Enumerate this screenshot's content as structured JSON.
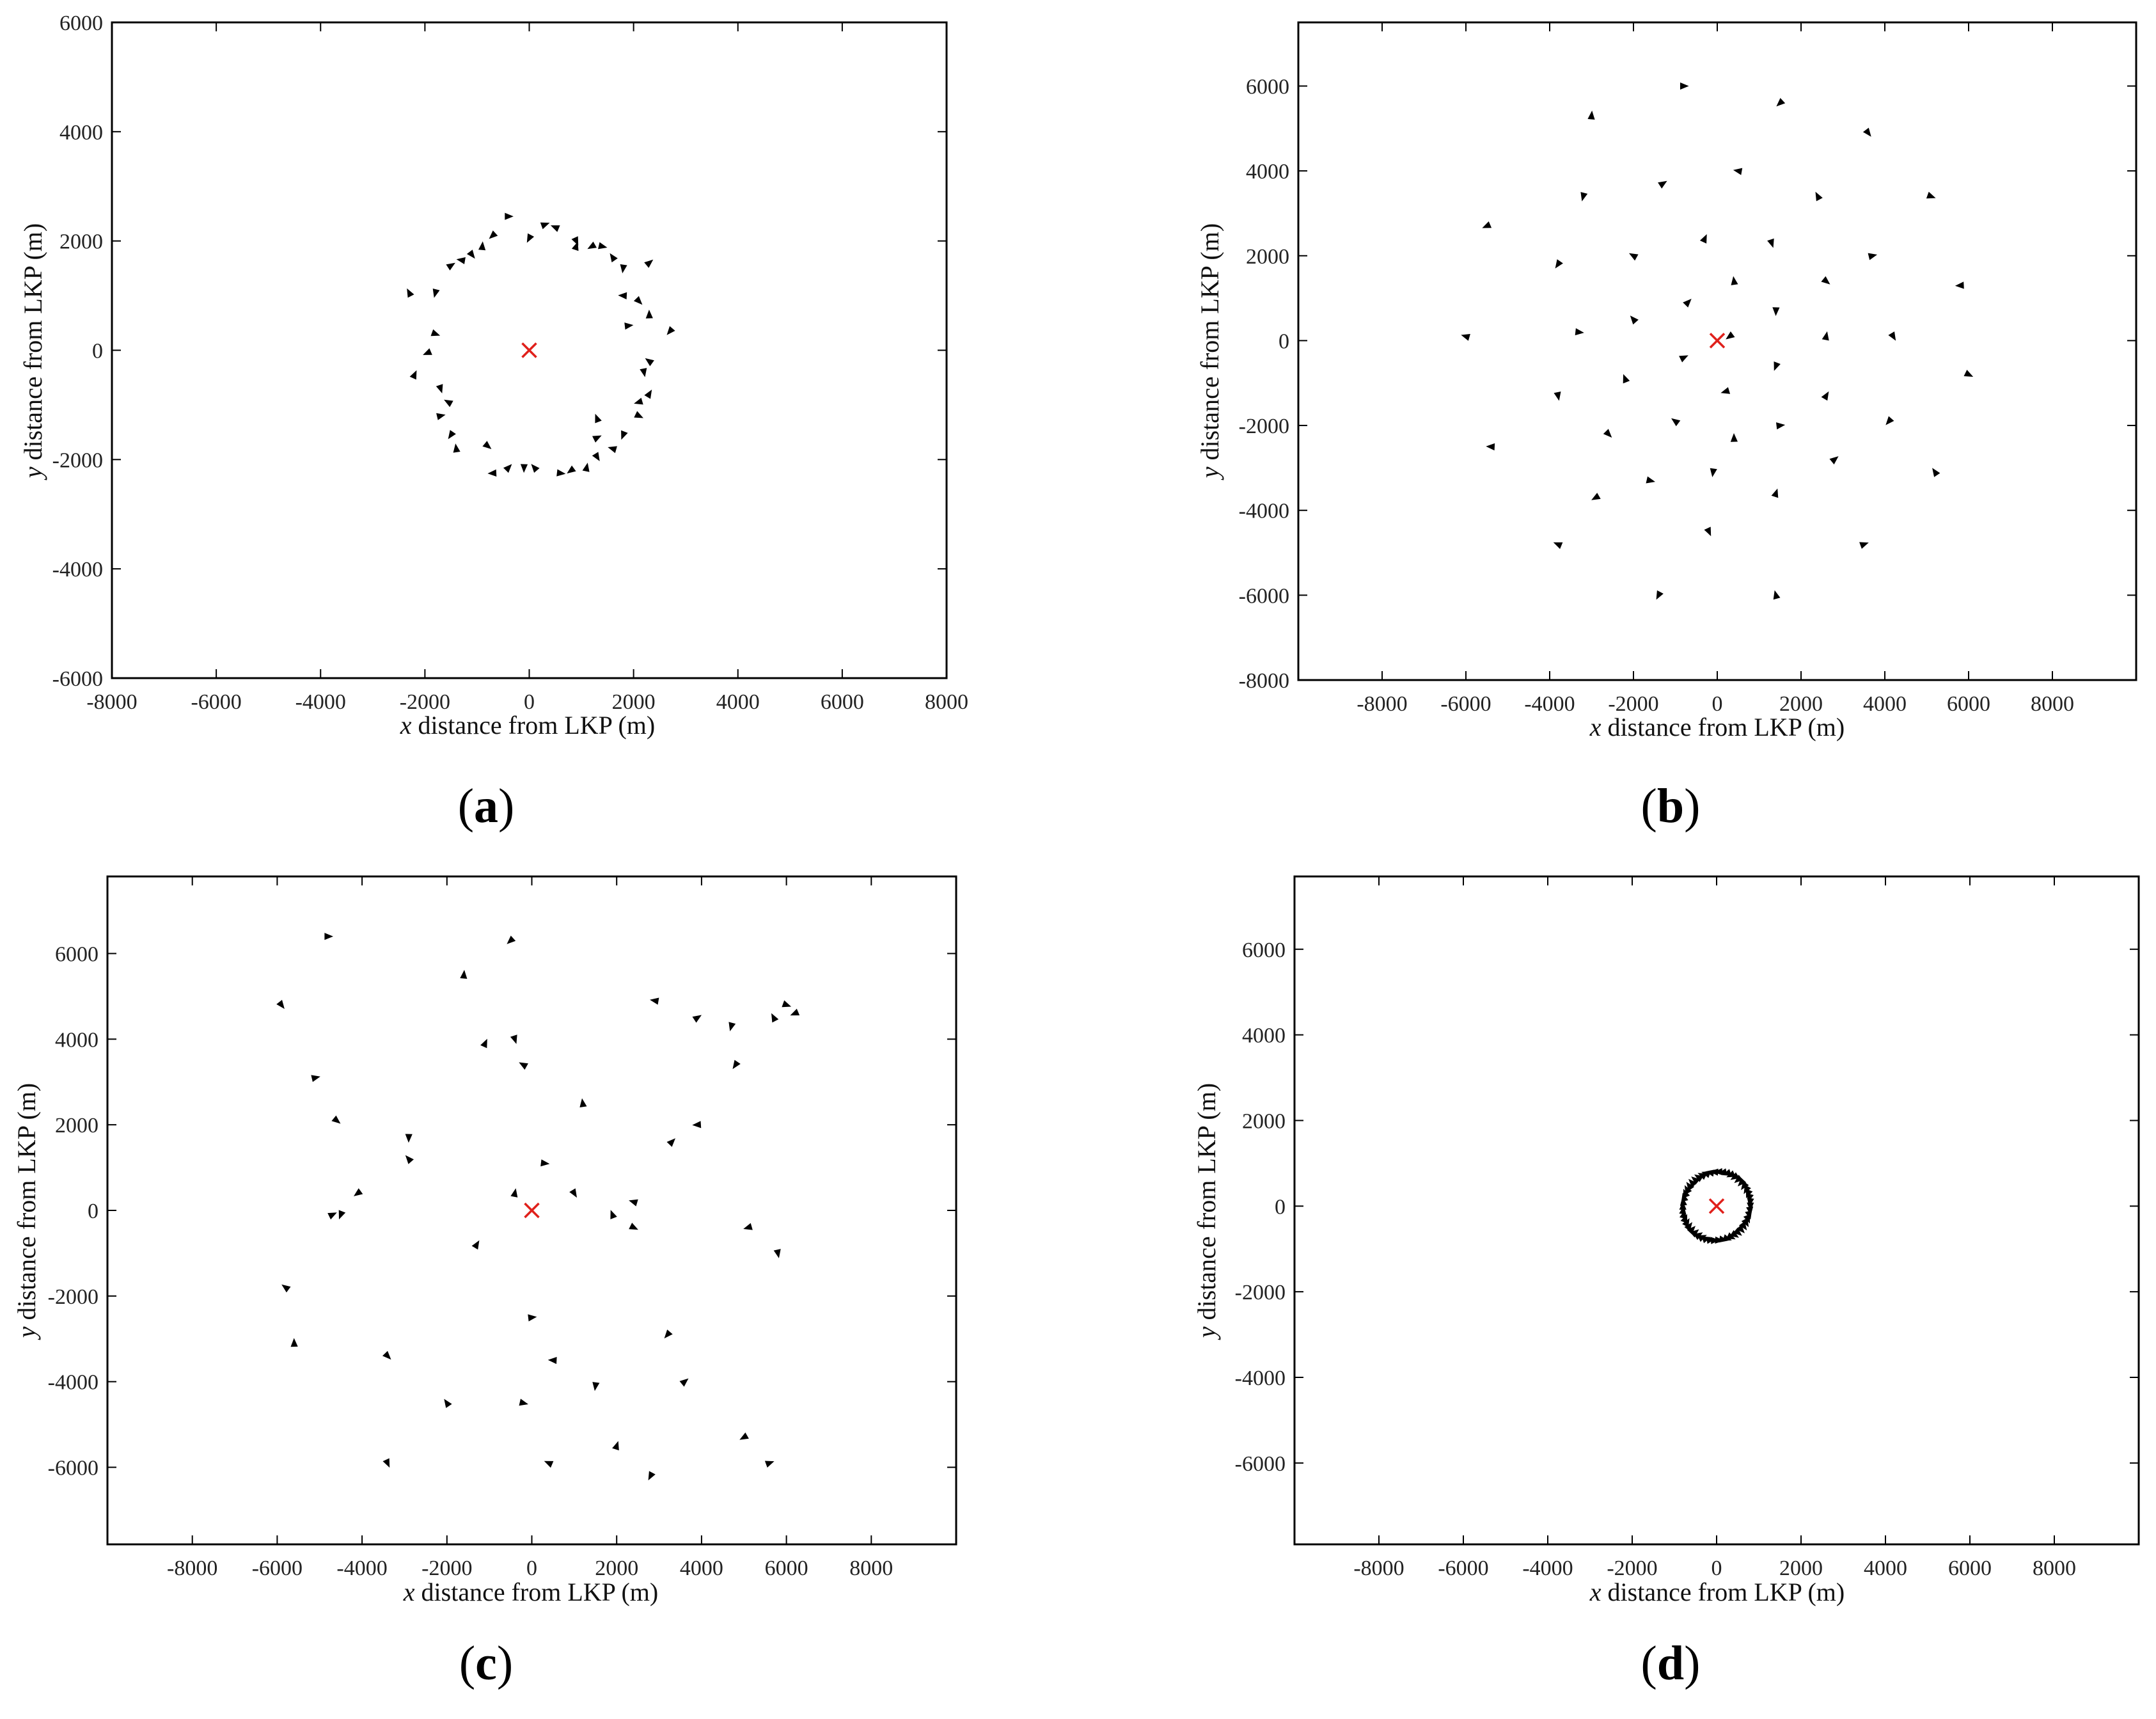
{
  "colors": {
    "drone": "#000000",
    "lkp": "#e0201b",
    "axis": "#000000",
    "tick_text": "#222222"
  },
  "chart_data": [
    {
      "panel": "a",
      "caption": "a",
      "type": "scatter",
      "xlabel_var": "x",
      "xlabel": "distance from LKP (m)",
      "ylabel_var": "y",
      "ylabel": "distance from LKP (m)",
      "xlim": [
        -8000,
        8000
      ],
      "ylim": [
        -6000,
        6000
      ],
      "xticks": [
        -8000,
        -6000,
        -4000,
        -2000,
        0,
        2000,
        4000,
        6000,
        8000
      ],
      "yticks": [
        -6000,
        -4000,
        -2000,
        0,
        2000,
        4000,
        6000
      ],
      "grid": false,
      "lkp": [
        0,
        0
      ],
      "points": [
        [
          -400,
          2450
        ],
        [
          -700,
          2100
        ],
        [
          -900,
          1900
        ],
        [
          -1100,
          1750
        ],
        [
          -1300,
          1650
        ],
        [
          -1500,
          1550
        ],
        [
          -1800,
          1050
        ],
        [
          -2300,
          1050
        ],
        [
          -1800,
          300
        ],
        [
          -1950,
          -50
        ],
        [
          -2200,
          -450
        ],
        [
          -1700,
          -700
        ],
        [
          -1550,
          -950
        ],
        [
          -1700,
          -1200
        ],
        [
          -1500,
          -1550
        ],
        [
          -1400,
          -1800
        ],
        [
          -800,
          -1750
        ],
        [
          -700,
          -2250
        ],
        [
          -400,
          -2150
        ],
        [
          -100,
          -2150
        ],
        [
          100,
          -2150
        ],
        [
          600,
          -2250
        ],
        [
          800,
          -2200
        ],
        [
          1100,
          -2150
        ],
        [
          1300,
          -1950
        ],
        [
          1600,
          -1800
        ],
        [
          1300,
          -1600
        ],
        [
          1800,
          -1550
        ],
        [
          1300,
          -1250
        ],
        [
          2100,
          -1200
        ],
        [
          2100,
          -950
        ],
        [
          2300,
          -800
        ],
        [
          2200,
          -400
        ],
        [
          2300,
          -200
        ],
        [
          1900,
          450
        ],
        [
          2700,
          350
        ],
        [
          2300,
          650
        ],
        [
          2100,
          900
        ],
        [
          1800,
          1000
        ],
        [
          2300,
          1600
        ],
        [
          1800,
          1500
        ],
        [
          1600,
          1700
        ],
        [
          1400,
          1900
        ],
        [
          1200,
          1900
        ],
        [
          900,
          1900
        ],
        [
          900,
          2000
        ],
        [
          500,
          2250
        ],
        [
          300,
          2300
        ],
        [
          0,
          2050
        ]
      ]
    },
    {
      "panel": "b",
      "caption": "b",
      "type": "scatter",
      "xlabel_var": "x",
      "xlabel": "distance from LKP (m)",
      "ylabel_var": "y",
      "ylabel": "distance from LKP (m)",
      "xlim": [
        -10000,
        10000
      ],
      "ylim": [
        -8000,
        7500
      ],
      "xticks": [
        -8000,
        -6000,
        -4000,
        -2000,
        0,
        2000,
        4000,
        6000,
        8000
      ],
      "yticks": [
        -8000,
        -6000,
        -4000,
        -2000,
        0,
        2000,
        4000,
        6000
      ],
      "grid": false,
      "lkp": [
        0,
        0
      ],
      "points": [
        [
          -800,
          6000
        ],
        [
          1500,
          5600
        ],
        [
          -3000,
          5300
        ],
        [
          3600,
          4900
        ],
        [
          500,
          4000
        ],
        [
          -1300,
          3700
        ],
        [
          -3200,
          3400
        ],
        [
          2400,
          3400
        ],
        [
          5100,
          3400
        ],
        [
          -5500,
          2700
        ],
        [
          -300,
          2400
        ],
        [
          1300,
          2300
        ],
        [
          -2000,
          2000
        ],
        [
          3700,
          2000
        ],
        [
          -3800,
          1800
        ],
        [
          400,
          1400
        ],
        [
          2600,
          1400
        ],
        [
          5800,
          1300
        ],
        [
          -700,
          900
        ],
        [
          1400,
          700
        ],
        [
          -2000,
          500
        ],
        [
          -3300,
          200
        ],
        [
          300,
          100
        ],
        [
          2600,
          100
        ],
        [
          4200,
          100
        ],
        [
          -6000,
          100
        ],
        [
          -800,
          -400
        ],
        [
          1400,
          -600
        ],
        [
          -2200,
          -900
        ],
        [
          6000,
          -800
        ],
        [
          200,
          -1200
        ],
        [
          2600,
          -1300
        ],
        [
          -3800,
          -1300
        ],
        [
          -1000,
          -1900
        ],
        [
          1500,
          -2000
        ],
        [
          4100,
          -1900
        ],
        [
          400,
          -2300
        ],
        [
          -2600,
          -2200
        ],
        [
          -5400,
          -2500
        ],
        [
          2800,
          -2800
        ],
        [
          -100,
          -3100
        ],
        [
          5200,
          -3100
        ],
        [
          -1600,
          -3300
        ],
        [
          -2900,
          -3700
        ],
        [
          1400,
          -3600
        ],
        [
          -200,
          -4500
        ],
        [
          -3800,
          -4800
        ],
        [
          3500,
          -4800
        ],
        [
          -1400,
          -6000
        ],
        [
          1400,
          -6000
        ]
      ]
    },
    {
      "panel": "c",
      "caption": "c",
      "type": "scatter",
      "xlabel_var": "x",
      "xlabel": "distance from LKP (m)",
      "ylabel_var": "y",
      "ylabel": "distance from LKP (m)",
      "xlim": [
        -10000,
        10000
      ],
      "ylim": [
        -7800,
        7800
      ],
      "xticks": [
        -8000,
        -6000,
        -4000,
        -2000,
        0,
        2000,
        4000,
        6000,
        8000
      ],
      "yticks": [
        -6000,
        -4000,
        -2000,
        0,
        2000,
        4000,
        6000
      ],
      "grid": false,
      "lkp": [
        0,
        0
      ],
      "points": [
        [
          -4800,
          6400
        ],
        [
          -500,
          6300
        ],
        [
          -1600,
          5500
        ],
        [
          -5900,
          4800
        ],
        [
          2900,
          4900
        ],
        [
          3900,
          4500
        ],
        [
          4700,
          4300
        ],
        [
          5700,
          4500
        ],
        [
          6000,
          4800
        ],
        [
          6200,
          4600
        ],
        [
          -1100,
          3900
        ],
        [
          -400,
          4000
        ],
        [
          -200,
          3400
        ],
        [
          -5100,
          3100
        ],
        [
          4800,
          3400
        ],
        [
          1200,
          2500
        ],
        [
          -4600,
          2100
        ],
        [
          3900,
          2000
        ],
        [
          3300,
          1600
        ],
        [
          -2900,
          1700
        ],
        [
          -2900,
          1200
        ],
        [
          300,
          1100
        ],
        [
          -4100,
          400
        ],
        [
          -400,
          400
        ],
        [
          1000,
          400
        ],
        [
          2400,
          200
        ],
        [
          -4700,
          -100
        ],
        [
          -4500,
          -100
        ],
        [
          1900,
          -100
        ],
        [
          2400,
          -400
        ],
        [
          5100,
          -400
        ],
        [
          -1300,
          -800
        ],
        [
          5800,
          -1000
        ],
        [
          -5800,
          -1800
        ],
        [
          0,
          -2500
        ],
        [
          3200,
          -2900
        ],
        [
          -5600,
          -3100
        ],
        [
          -3400,
          -3400
        ],
        [
          500,
          -3500
        ],
        [
          3600,
          -4000
        ],
        [
          1500,
          -4100
        ],
        [
          -2000,
          -4500
        ],
        [
          -200,
          -4500
        ],
        [
          5000,
          -5300
        ],
        [
          2000,
          -5500
        ],
        [
          -3400,
          -5900
        ],
        [
          400,
          -5900
        ],
        [
          5600,
          -5900
        ],
        [
          2800,
          -6200
        ]
      ]
    },
    {
      "panel": "d",
      "caption": "d",
      "type": "scatter",
      "xlabel_var": "x",
      "xlabel": "distance from LKP (m)",
      "ylabel_var": "y",
      "ylabel": "distance from LKP (m)",
      "xlim": [
        -10000,
        10000
      ],
      "ylim": [
        -7900,
        7700
      ],
      "xticks": [
        -8000,
        -6000,
        -4000,
        -2000,
        0,
        2000,
        4000,
        6000,
        8000
      ],
      "yticks": [
        -6000,
        -4000,
        -2000,
        0,
        2000,
        4000,
        6000
      ],
      "grid": false,
      "lkp": [
        0,
        0
      ],
      "ring_radius": 800,
      "ring_count": 50
    }
  ]
}
